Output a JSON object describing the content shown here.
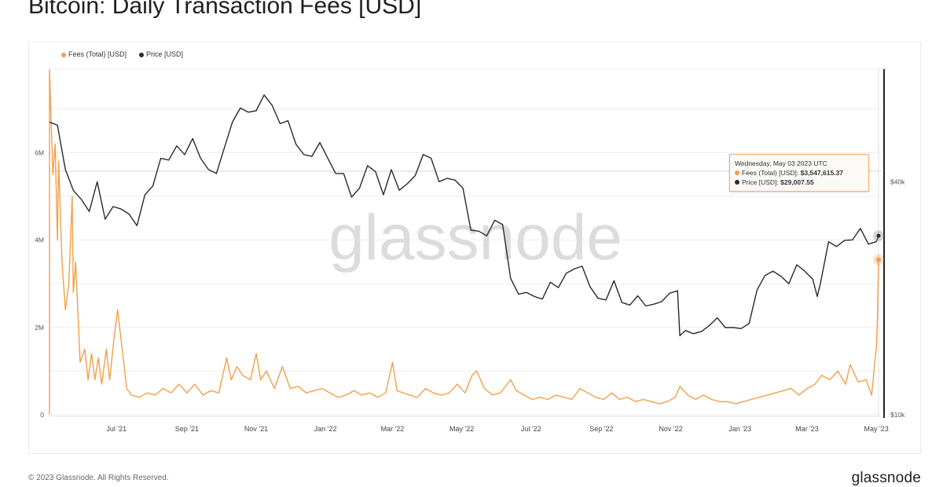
{
  "title": "Bitcoin: Daily Transaction Fees [USD]",
  "watermark": "glassnode",
  "footer": {
    "copyright": "© 2023 Glassnode. All Rights Reserved.",
    "logo": "glassnode"
  },
  "tooltip": {
    "date": "Wednesday, May 03 2023 UTC",
    "fees_label": "Fees (Total) [USD]:",
    "fees_value": "$3,547,615.37",
    "price_label": "Price [USD]:",
    "price_value": "$29,007.55"
  },
  "chart_data": {
    "type": "line",
    "colors": {
      "fees": "#f0a04b",
      "price": "#2a2a2a"
    },
    "legend_placement": "top-left",
    "grid": true,
    "x_range": [
      "2021-05-03",
      "2023-05-03"
    ],
    "x_ticks": [
      {
        "date": "2021-07-01",
        "label": "Jul '21"
      },
      {
        "date": "2021-09-01",
        "label": "Sep '21"
      },
      {
        "date": "2021-11-01",
        "label": "Nov '21"
      },
      {
        "date": "2022-01-01",
        "label": "Jan '22"
      },
      {
        "date": "2022-03-01",
        "label": "Mar '22"
      },
      {
        "date": "2022-05-01",
        "label": "May '22"
      },
      {
        "date": "2022-07-01",
        "label": "Jul '22"
      },
      {
        "date": "2022-09-01",
        "label": "Sep '22"
      },
      {
        "date": "2022-11-01",
        "label": "Nov '22"
      },
      {
        "date": "2023-01-01",
        "label": "Jan '23"
      },
      {
        "date": "2023-03-01",
        "label": "Mar '23"
      },
      {
        "date": "2023-05-01",
        "label": "May '23"
      }
    ],
    "y_left": {
      "scale": "linear",
      "range": [
        0,
        8000000
      ],
      "ticks": [
        {
          "v": 0,
          "label": "0"
        },
        {
          "v": 2000000,
          "label": "2M"
        },
        {
          "v": 4000000,
          "label": "4M"
        },
        {
          "v": 6000000,
          "label": "6M"
        }
      ]
    },
    "y_right": {
      "scale": "log",
      "range": [
        10000,
        80000
      ],
      "ticks": [
        {
          "v": 10000,
          "label": "$10k"
        },
        {
          "v": 40000,
          "label": "$40k"
        }
      ]
    },
    "series": [
      {
        "name": "Fees (Total) [USD]",
        "axis": "left",
        "points": [
          [
            "2021-05-03",
            7900000
          ],
          [
            "2021-05-06",
            5500000
          ],
          [
            "2021-05-08",
            6200000
          ],
          [
            "2021-05-10",
            4000000
          ],
          [
            "2021-05-11",
            5800000
          ],
          [
            "2021-05-14",
            3500000
          ],
          [
            "2021-05-17",
            2400000
          ],
          [
            "2021-05-20",
            3000000
          ],
          [
            "2021-05-23",
            5000000
          ],
          [
            "2021-05-24",
            2800000
          ],
          [
            "2021-05-26",
            3500000
          ],
          [
            "2021-05-30",
            1200000
          ],
          [
            "2021-06-03",
            1500000
          ],
          [
            "2021-06-06",
            800000
          ],
          [
            "2021-06-09",
            1400000
          ],
          [
            "2021-06-12",
            800000
          ],
          [
            "2021-06-15",
            1300000
          ],
          [
            "2021-06-18",
            700000
          ],
          [
            "2021-06-22",
            1500000
          ],
          [
            "2021-06-25",
            800000
          ],
          [
            "2021-06-29",
            1800000
          ],
          [
            "2021-07-02",
            2400000
          ],
          [
            "2021-07-06",
            1500000
          ],
          [
            "2021-07-10",
            600000
          ],
          [
            "2021-07-14",
            450000
          ],
          [
            "2021-07-21",
            400000
          ],
          [
            "2021-07-28",
            500000
          ],
          [
            "2021-08-04",
            450000
          ],
          [
            "2021-08-11",
            600000
          ],
          [
            "2021-08-18",
            500000
          ],
          [
            "2021-08-25",
            700000
          ],
          [
            "2021-09-01",
            500000
          ],
          [
            "2021-09-08",
            700000
          ],
          [
            "2021-09-15",
            450000
          ],
          [
            "2021-09-22",
            550000
          ],
          [
            "2021-09-29",
            500000
          ],
          [
            "2021-10-06",
            1300000
          ],
          [
            "2021-10-10",
            800000
          ],
          [
            "2021-10-15",
            1100000
          ],
          [
            "2021-10-20",
            900000
          ],
          [
            "2021-10-27",
            800000
          ],
          [
            "2021-11-01",
            1400000
          ],
          [
            "2021-11-05",
            800000
          ],
          [
            "2021-11-10",
            1000000
          ],
          [
            "2021-11-17",
            600000
          ],
          [
            "2021-11-24",
            1100000
          ],
          [
            "2021-12-01",
            600000
          ],
          [
            "2021-12-08",
            650000
          ],
          [
            "2021-12-15",
            500000
          ],
          [
            "2021-12-22",
            550000
          ],
          [
            "2021-12-29",
            600000
          ],
          [
            "2022-01-05",
            500000
          ],
          [
            "2022-01-12",
            400000
          ],
          [
            "2022-01-19",
            450000
          ],
          [
            "2022-01-26",
            550000
          ],
          [
            "2022-02-02",
            450000
          ],
          [
            "2022-02-09",
            500000
          ],
          [
            "2022-02-16",
            400000
          ],
          [
            "2022-02-23",
            500000
          ],
          [
            "2022-03-01",
            1200000
          ],
          [
            "2022-03-05",
            550000
          ],
          [
            "2022-03-16",
            450000
          ],
          [
            "2022-03-23",
            400000
          ],
          [
            "2022-03-30",
            600000
          ],
          [
            "2022-04-06",
            500000
          ],
          [
            "2022-04-13",
            450000
          ],
          [
            "2022-04-20",
            500000
          ],
          [
            "2022-04-27",
            700000
          ],
          [
            "2022-05-04",
            500000
          ],
          [
            "2022-05-10",
            900000
          ],
          [
            "2022-05-14",
            1000000
          ],
          [
            "2022-05-21",
            600000
          ],
          [
            "2022-05-28",
            450000
          ],
          [
            "2022-06-04",
            500000
          ],
          [
            "2022-06-13",
            800000
          ],
          [
            "2022-06-18",
            550000
          ],
          [
            "2022-06-25",
            450000
          ],
          [
            "2022-07-02",
            350000
          ],
          [
            "2022-07-09",
            400000
          ],
          [
            "2022-07-16",
            350000
          ],
          [
            "2022-07-23",
            450000
          ],
          [
            "2022-07-30",
            400000
          ],
          [
            "2022-08-06",
            350000
          ],
          [
            "2022-08-13",
            600000
          ],
          [
            "2022-08-20",
            500000
          ],
          [
            "2022-08-27",
            400000
          ],
          [
            "2022-09-03",
            350000
          ],
          [
            "2022-09-10",
            500000
          ],
          [
            "2022-09-17",
            350000
          ],
          [
            "2022-09-24",
            400000
          ],
          [
            "2022-10-01",
            300000
          ],
          [
            "2022-10-08",
            350000
          ],
          [
            "2022-10-15",
            300000
          ],
          [
            "2022-10-22",
            250000
          ],
          [
            "2022-10-29",
            300000
          ],
          [
            "2022-11-05",
            400000
          ],
          [
            "2022-11-09",
            650000
          ],
          [
            "2022-11-16",
            450000
          ],
          [
            "2022-11-23",
            350000
          ],
          [
            "2022-11-30",
            450000
          ],
          [
            "2022-12-07",
            350000
          ],
          [
            "2022-12-14",
            300000
          ],
          [
            "2022-12-21",
            300000
          ],
          [
            "2022-12-28",
            250000
          ],
          [
            "2023-01-04",
            300000
          ],
          [
            "2023-01-11",
            350000
          ],
          [
            "2023-01-18",
            400000
          ],
          [
            "2023-01-25",
            450000
          ],
          [
            "2023-02-01",
            500000
          ],
          [
            "2023-02-08",
            550000
          ],
          [
            "2023-02-15",
            600000
          ],
          [
            "2023-02-22",
            450000
          ],
          [
            "2023-03-01",
            600000
          ],
          [
            "2023-03-08",
            700000
          ],
          [
            "2023-03-14",
            900000
          ],
          [
            "2023-03-21",
            800000
          ],
          [
            "2023-03-28",
            1000000
          ],
          [
            "2023-04-04",
            700000
          ],
          [
            "2023-04-08",
            1150000
          ],
          [
            "2023-04-15",
            750000
          ],
          [
            "2023-04-22",
            800000
          ],
          [
            "2023-04-27",
            450000
          ],
          [
            "2023-04-30",
            1300000
          ],
          [
            "2023-05-01",
            1500000
          ],
          [
            "2023-05-02",
            2200000
          ],
          [
            "2023-05-03",
            3547615.37
          ]
        ]
      },
      {
        "name": "Price [USD]",
        "axis": "right",
        "points": [
          [
            "2021-05-03",
            57000
          ],
          [
            "2021-05-10",
            56000
          ],
          [
            "2021-05-17",
            43000
          ],
          [
            "2021-05-24",
            38000
          ],
          [
            "2021-05-31",
            36000
          ],
          [
            "2021-06-07",
            33500
          ],
          [
            "2021-06-14",
            40000
          ],
          [
            "2021-06-21",
            32000
          ],
          [
            "2021-06-28",
            34500
          ],
          [
            "2021-07-05",
            34000
          ],
          [
            "2021-07-12",
            33000
          ],
          [
            "2021-07-19",
            30800
          ],
          [
            "2021-07-26",
            37000
          ],
          [
            "2021-08-02",
            39000
          ],
          [
            "2021-08-09",
            46000
          ],
          [
            "2021-08-16",
            45500
          ],
          [
            "2021-08-23",
            49500
          ],
          [
            "2021-08-30",
            47000
          ],
          [
            "2021-09-06",
            51700
          ],
          [
            "2021-09-13",
            46000
          ],
          [
            "2021-09-20",
            43000
          ],
          [
            "2021-09-27",
            42000
          ],
          [
            "2021-10-04",
            49000
          ],
          [
            "2021-10-11",
            57000
          ],
          [
            "2021-10-18",
            62000
          ],
          [
            "2021-10-25",
            60500
          ],
          [
            "2021-11-01",
            61000
          ],
          [
            "2021-11-08",
            67000
          ],
          [
            "2021-11-15",
            63000
          ],
          [
            "2021-11-22",
            56500
          ],
          [
            "2021-11-29",
            57500
          ],
          [
            "2021-12-06",
            50000
          ],
          [
            "2021-12-13",
            47000
          ],
          [
            "2021-12-20",
            46500
          ],
          [
            "2021-12-27",
            50500
          ],
          [
            "2022-01-03",
            46000
          ],
          [
            "2022-01-10",
            42000
          ],
          [
            "2022-01-17",
            42000
          ],
          [
            "2022-01-24",
            36500
          ],
          [
            "2022-01-31",
            38500
          ],
          [
            "2022-02-07",
            44000
          ],
          [
            "2022-02-14",
            42500
          ],
          [
            "2022-02-21",
            37000
          ],
          [
            "2022-02-28",
            43000
          ],
          [
            "2022-03-07",
            38000
          ],
          [
            "2022-03-14",
            39500
          ],
          [
            "2022-03-21",
            41500
          ],
          [
            "2022-03-28",
            47000
          ],
          [
            "2022-04-04",
            46000
          ],
          [
            "2022-04-11",
            40000
          ],
          [
            "2022-04-18",
            40800
          ],
          [
            "2022-04-25",
            40400
          ],
          [
            "2022-05-02",
            38500
          ],
          [
            "2022-05-09",
            30000
          ],
          [
            "2022-05-16",
            29800
          ],
          [
            "2022-05-23",
            29000
          ],
          [
            "2022-05-30",
            31800
          ],
          [
            "2022-06-06",
            31000
          ],
          [
            "2022-06-13",
            22500
          ],
          [
            "2022-06-20",
            20500
          ],
          [
            "2022-06-27",
            20700
          ],
          [
            "2022-07-04",
            20200
          ],
          [
            "2022-07-11",
            19900
          ],
          [
            "2022-07-18",
            22000
          ],
          [
            "2022-07-25",
            21300
          ],
          [
            "2022-08-01",
            23200
          ],
          [
            "2022-08-08",
            23800
          ],
          [
            "2022-08-15",
            24200
          ],
          [
            "2022-08-22",
            21400
          ],
          [
            "2022-08-29",
            20000
          ],
          [
            "2022-09-05",
            19800
          ],
          [
            "2022-09-12",
            22200
          ],
          [
            "2022-09-19",
            19500
          ],
          [
            "2022-09-26",
            19200
          ],
          [
            "2022-10-03",
            20300
          ],
          [
            "2022-10-10",
            19100
          ],
          [
            "2022-10-17",
            19300
          ],
          [
            "2022-10-24",
            19600
          ],
          [
            "2022-10-31",
            20600
          ],
          [
            "2022-11-07",
            20900
          ],
          [
            "2022-11-09",
            16000
          ],
          [
            "2022-11-14",
            16500
          ],
          [
            "2022-11-21",
            16200
          ],
          [
            "2022-11-28",
            16400
          ],
          [
            "2022-12-05",
            17000
          ],
          [
            "2022-12-12",
            17800
          ],
          [
            "2022-12-19",
            16800
          ],
          [
            "2022-12-26",
            16800
          ],
          [
            "2023-01-02",
            16700
          ],
          [
            "2023-01-09",
            17200
          ],
          [
            "2023-01-16",
            21000
          ],
          [
            "2023-01-23",
            22900
          ],
          [
            "2023-01-30",
            23500
          ],
          [
            "2023-02-06",
            22800
          ],
          [
            "2023-02-13",
            21800
          ],
          [
            "2023-02-20",
            24400
          ],
          [
            "2023-02-27",
            23500
          ],
          [
            "2023-03-06",
            22400
          ],
          [
            "2023-03-10",
            20200
          ],
          [
            "2023-03-13",
            22000
          ],
          [
            "2023-03-20",
            28000
          ],
          [
            "2023-03-27",
            27200
          ],
          [
            "2023-04-03",
            28200
          ],
          [
            "2023-04-10",
            28300
          ],
          [
            "2023-04-17",
            30300
          ],
          [
            "2023-04-24",
            27600
          ],
          [
            "2023-05-01",
            28000
          ],
          [
            "2023-05-03",
            29007.55
          ]
        ]
      }
    ]
  }
}
